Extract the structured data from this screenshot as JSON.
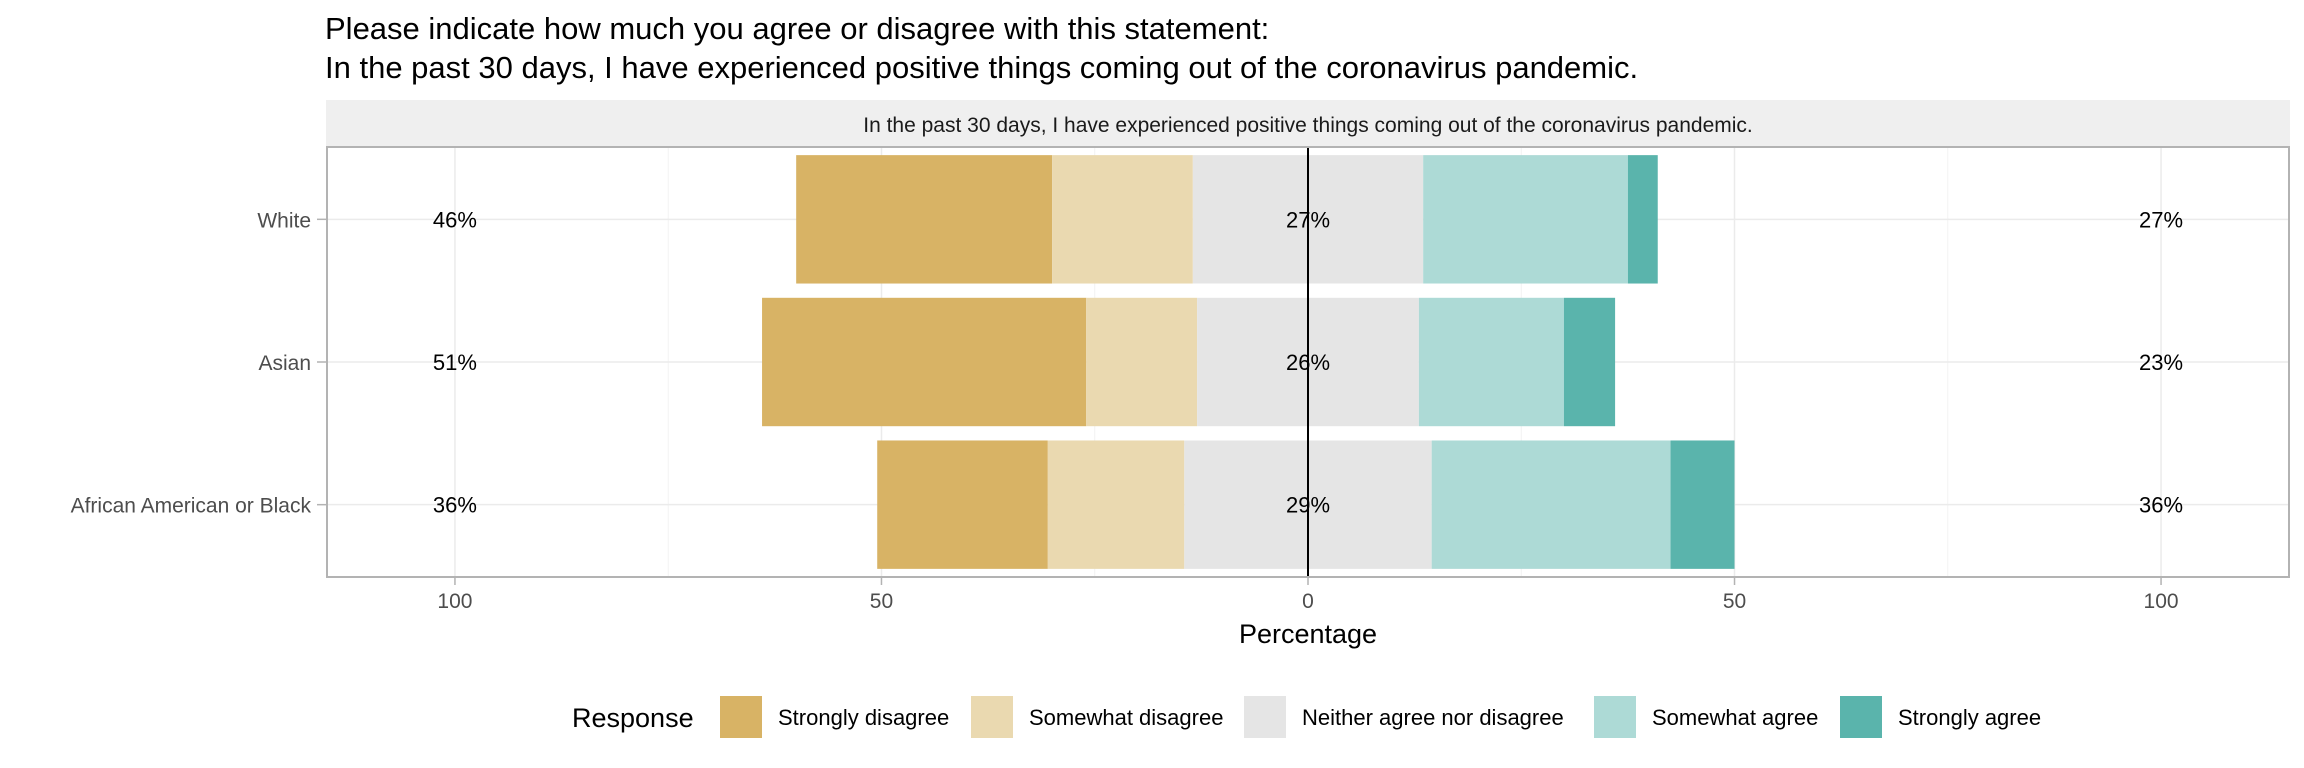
{
  "title_lines": [
    "Please indicate how much you agree or disagree with this statement:",
    "In the past 30 days, I have experienced positive things coming out of the coronavirus pandemic."
  ],
  "chart_data": {
    "type": "bar",
    "subtype": "diverging-stacked-likert",
    "title": "Please indicate how much you agree or disagree with this statement: In the past 30 days, I have experienced positive things coming out of the coronavirus pandemic.",
    "facet_label": "In the past 30 days, I have experienced positive things coming out of the coronavirus pandemic.",
    "categories": [
      "White",
      "Asian",
      "African American or Black"
    ],
    "series": [
      {
        "name": "Strongly disagree",
        "color": "#D8B365",
        "values": [
          30,
          38,
          20
        ]
      },
      {
        "name": "Somewhat disagree",
        "color": "#EAD9B0",
        "values": [
          16.5,
          13,
          16
        ]
      },
      {
        "name": "Neither agree nor disagree",
        "color": "#E5E5E5",
        "values": [
          27,
          26,
          29
        ]
      },
      {
        "name": "Somewhat agree",
        "color": "#ADDAD6",
        "values": [
          24,
          17,
          28
        ]
      },
      {
        "name": "Strongly agree",
        "color": "#5AB4AC",
        "values": [
          3.5,
          6,
          7.5
        ]
      }
    ],
    "percent_labels": {
      "low": [
        "46%",
        "51%",
        "36%"
      ],
      "neutral": [
        "27%",
        "26%",
        "29%"
      ],
      "high": [
        "27%",
        "23%",
        "36%"
      ]
    },
    "xlabel": "Percentage",
    "ylabel": "",
    "xlim": [
      -115,
      115
    ],
    "x_ticks": [
      -100,
      -50,
      0,
      50,
      100
    ],
    "x_tick_labels": [
      "100",
      "50",
      "0",
      "50",
      "100"
    ],
    "label_positions": {
      "low": -100,
      "high": 100
    },
    "legend_title": "Response",
    "legend_position": "bottom"
  }
}
